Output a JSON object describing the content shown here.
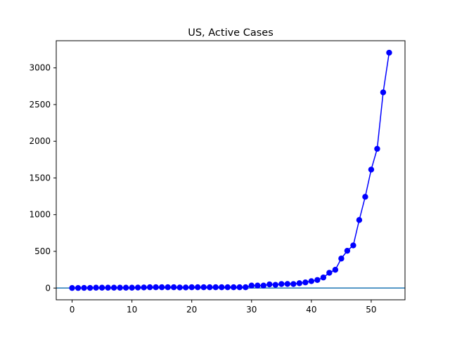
{
  "chart_data": {
    "type": "line",
    "title": "US, Active Cases",
    "xlabel": "",
    "ylabel": "",
    "xlim": [
      -2.65,
      55.65
    ],
    "ylim": [
      -160,
      3370
    ],
    "xticks": [
      0,
      10,
      20,
      30,
      40,
      50
    ],
    "yticks": [
      0,
      500,
      1000,
      1500,
      2000,
      2500,
      3000
    ],
    "grid": false,
    "legend": "none",
    "series": [
      {
        "color": "#0000ff",
        "marker": "circle",
        "x": [
          0,
          1,
          2,
          3,
          4,
          5,
          6,
          7,
          8,
          9,
          10,
          11,
          12,
          13,
          14,
          15,
          16,
          17,
          18,
          19,
          20,
          21,
          22,
          23,
          24,
          25,
          26,
          27,
          28,
          29,
          30,
          31,
          32,
          33,
          34,
          35,
          36,
          37,
          38,
          39,
          40,
          41,
          42,
          43,
          44,
          45,
          46,
          47,
          48,
          49,
          50,
          51,
          52,
          53
        ],
        "values": [
          1,
          1,
          2,
          2,
          5,
          5,
          5,
          5,
          5,
          5,
          5,
          7,
          8,
          11,
          11,
          11,
          11,
          11,
          8,
          8,
          11,
          11,
          11,
          11,
          11,
          11,
          11,
          11,
          11,
          11,
          34,
          34,
          34,
          50,
          44,
          55,
          56,
          55,
          66,
          77,
          94,
          110,
          144,
          208,
          249,
          402,
          508,
          581,
          927,
          1243,
          1614,
          1897,
          2666,
          3207
        ]
      }
    ],
    "reference_line": {
      "y": 0,
      "color": "#1f77b4"
    },
    "colors": {
      "series": "#0000ff",
      "reference": "#1f77b4",
      "axes": "#000000",
      "background": "#ffffff"
    }
  }
}
